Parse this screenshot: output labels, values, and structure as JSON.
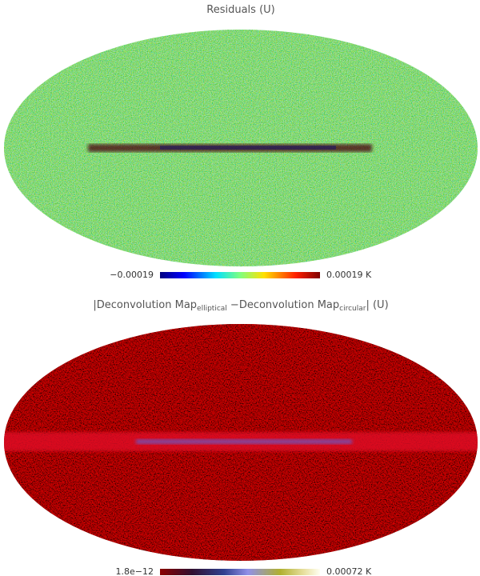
{
  "panels": [
    {
      "title": [
        "Residuals (U)"
      ],
      "colorbar": {
        "min_label": "−0.00019",
        "max_label": "0.00019 K"
      }
    },
    {
      "title": [
        "|Deconvolution Map",
        "elliptical",
        " −Deconvolution Map",
        "circular",
        "| (U)"
      ],
      "colorbar": {
        "min_label": "1.8e−12",
        "max_label": "0.00072 K"
      }
    }
  ]
}
